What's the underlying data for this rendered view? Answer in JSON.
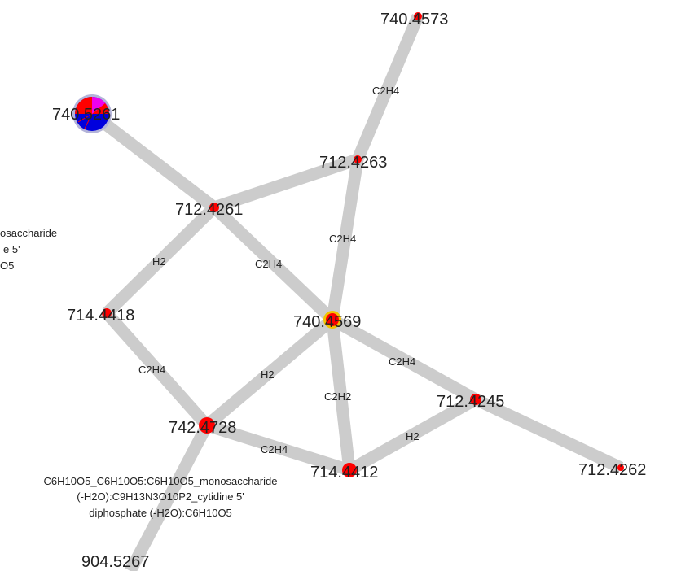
{
  "colors": {
    "edge": "#cccccc",
    "node_red": "#ff0000",
    "node_blue": "#0000dd",
    "node_magenta": "#ee00ee",
    "node_yellow": "#f2c200",
    "node_halo": "#b3b3d9",
    "text": "#222222"
  },
  "nodes": {
    "n740_4573": "740.4573",
    "n740_5261": "740.5261",
    "n712_4263": "712.4263",
    "n712_4261": "712.4261",
    "n714_4418": "714.4418",
    "n740_4569": "740.4569",
    "n742_4728": "742.4728",
    "n714_4412": "714.4412",
    "n712_4245": "712.4245",
    "n712_4262": "712.4262",
    "n904_5267": "904.5267"
  },
  "edges": {
    "e1": "C2H4",
    "e3": "C2H4",
    "e4": "C2H4",
    "e5": "H2",
    "e6": "C2H4",
    "e7": "H2",
    "e8": "C2H2",
    "e9": "C2H4",
    "e10": "C2H4",
    "e11": "H2"
  },
  "annotations": {
    "left_partial": {
      "line1": "osaccharide",
      "line2": "e 5'",
      "line3": "O5"
    },
    "bottom_formula": {
      "line1": "C6H10O5_C6H10O5:C6H10O5_monosaccharide",
      "line2": "(-H2O):C9H13N3O10P2_cytidine 5'",
      "line3": "diphosphate (-H2O):C6H10O5"
    }
  }
}
